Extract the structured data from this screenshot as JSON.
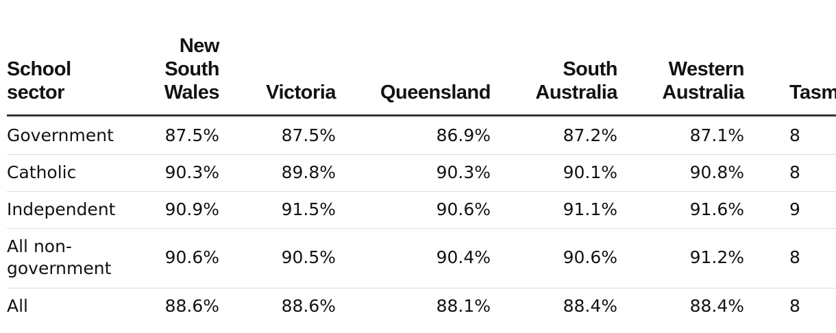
{
  "table": {
    "header": [
      "School sector",
      "New South Wales",
      "Victoria",
      "Queensland",
      "South Australia",
      "Western Australia",
      "Tasm"
    ],
    "rows": [
      [
        "Government",
        "87.5%",
        "87.5%",
        "86.9%",
        "87.2%",
        "87.1%",
        "8"
      ],
      [
        "Catholic",
        "90.3%",
        "89.8%",
        "90.3%",
        "90.1%",
        "90.8%",
        "8"
      ],
      [
        "Independent",
        "90.9%",
        "91.5%",
        "90.6%",
        "91.1%",
        "91.6%",
        "9"
      ],
      [
        "All non-government",
        "90.6%",
        "90.5%",
        "90.4%",
        "90.6%",
        "91.2%",
        "8"
      ],
      [
        "All",
        "88.6%",
        "88.6%",
        "88.1%",
        "88.4%",
        "88.4%",
        "8"
      ]
    ]
  }
}
